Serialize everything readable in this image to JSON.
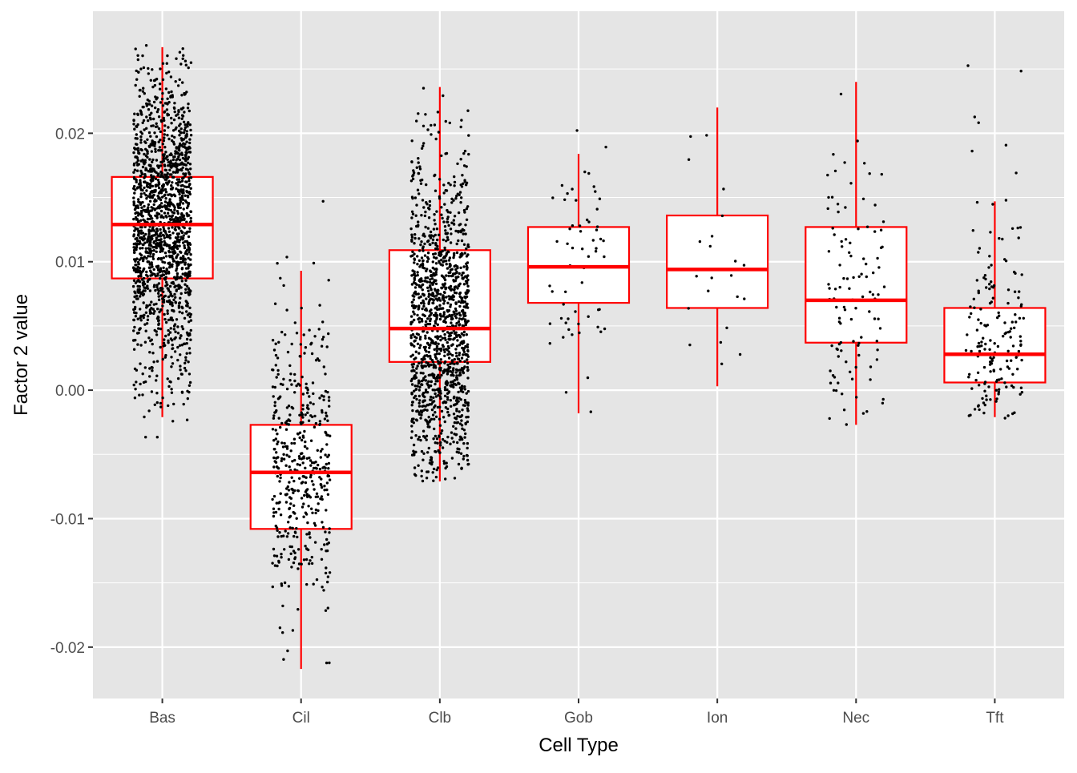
{
  "chart_data": {
    "type": "boxplot",
    "title": "",
    "xlabel": "Cell Type",
    "ylabel": "Factor 2 value",
    "ylim": [
      -0.024,
      0.0295
    ],
    "yticks": [
      -0.02,
      -0.01,
      0.0,
      0.01,
      0.02
    ],
    "ytick_labels": [
      "-0.02",
      "-0.01",
      "0.00",
      "0.01",
      "0.02"
    ],
    "grid": true,
    "legend": "none",
    "colors": {
      "panel_background": "#e5e5e5",
      "grid": "#ffffff",
      "box_fill": "#ffffff",
      "box_stroke": "#ff0000",
      "points": "#000000"
    },
    "categories": [
      "Bas",
      "Cil",
      "Clb",
      "Gob",
      "Ion",
      "Nec",
      "Tft"
    ],
    "boxes": [
      {
        "name": "Bas",
        "whisker_low": -0.0021,
        "q1": 0.0087,
        "median": 0.0129,
        "q3": 0.0166,
        "whisker_high": 0.0267,
        "n_points": 1600,
        "jitter_range": [
          -0.0037,
          0.0269
        ]
      },
      {
        "name": "Cil",
        "whisker_low": -0.0217,
        "q1": -0.0108,
        "median": -0.0064,
        "q3": -0.0027,
        "whisker_high": 0.0093,
        "n_points": 450,
        "jitter_range": [
          -0.0217,
          0.0148
        ]
      },
      {
        "name": "Clb",
        "whisker_low": -0.0071,
        "q1": 0.0022,
        "median": 0.0048,
        "q3": 0.0109,
        "whisker_high": 0.0236,
        "n_points": 1300,
        "jitter_range": [
          -0.0071,
          0.0236
        ]
      },
      {
        "name": "Gob",
        "whisker_low": -0.0018,
        "q1": 0.0068,
        "median": 0.0096,
        "q3": 0.0127,
        "whisker_high": 0.0184,
        "n_points": 60,
        "jitter_range": [
          -0.0018,
          0.0221
        ]
      },
      {
        "name": "Ion",
        "whisker_low": 0.0003,
        "q1": 0.0064,
        "median": 0.0094,
        "q3": 0.0136,
        "whisker_high": 0.022,
        "n_points": 22,
        "jitter_range": [
          0.0003,
          0.0221
        ]
      },
      {
        "name": "Nec",
        "whisker_low": -0.0027,
        "q1": 0.0037,
        "median": 0.007,
        "q3": 0.0127,
        "whisker_high": 0.024,
        "n_points": 110,
        "jitter_range": [
          -0.0028,
          0.0241
        ]
      },
      {
        "name": "Tft",
        "whisker_low": -0.0021,
        "q1": 0.0006,
        "median": 0.0028,
        "q3": 0.0064,
        "whisker_high": 0.0147,
        "n_points": 170,
        "jitter_range": [
          -0.0022,
          0.0258
        ]
      }
    ]
  }
}
